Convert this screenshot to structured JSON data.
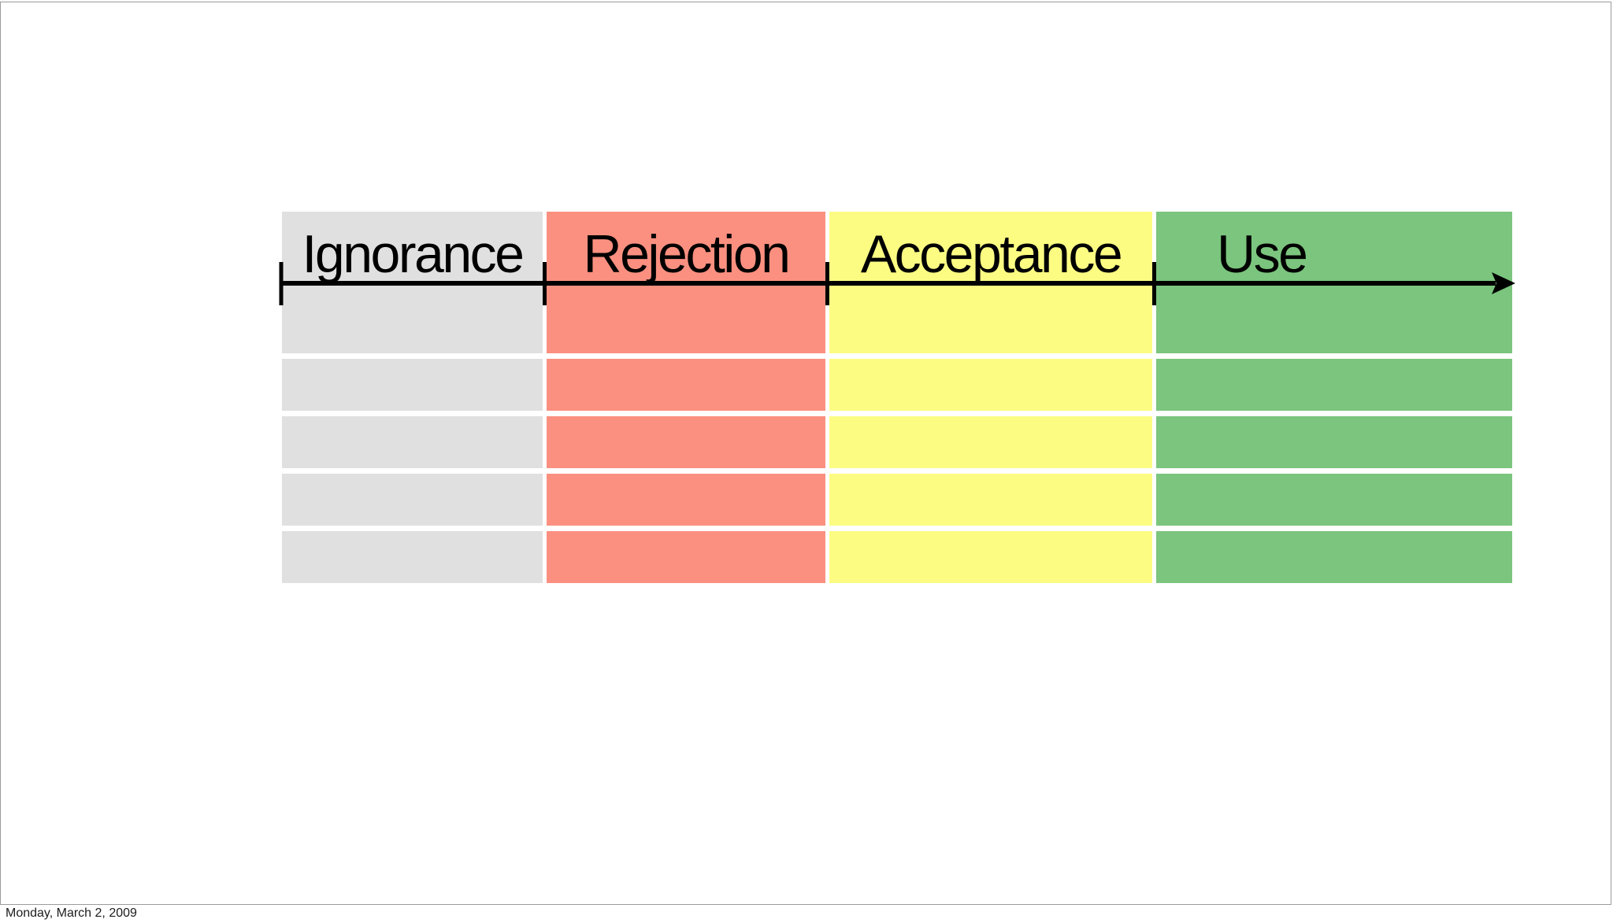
{
  "slide": {
    "columns": [
      {
        "label": "Ignorance",
        "color": "#e0e0e0"
      },
      {
        "label": "Rejection",
        "color": "#fb9080"
      },
      {
        "label": "Acceptance",
        "color": "#fcfc83"
      },
      {
        "label": "Use",
        "color": "#7bc57e"
      }
    ],
    "rows_per_column": 4,
    "arrow_color": "#000000",
    "canvas_border_color": "#9b9b9b"
  },
  "footer": {
    "date": "Monday, March 2, 2009"
  }
}
